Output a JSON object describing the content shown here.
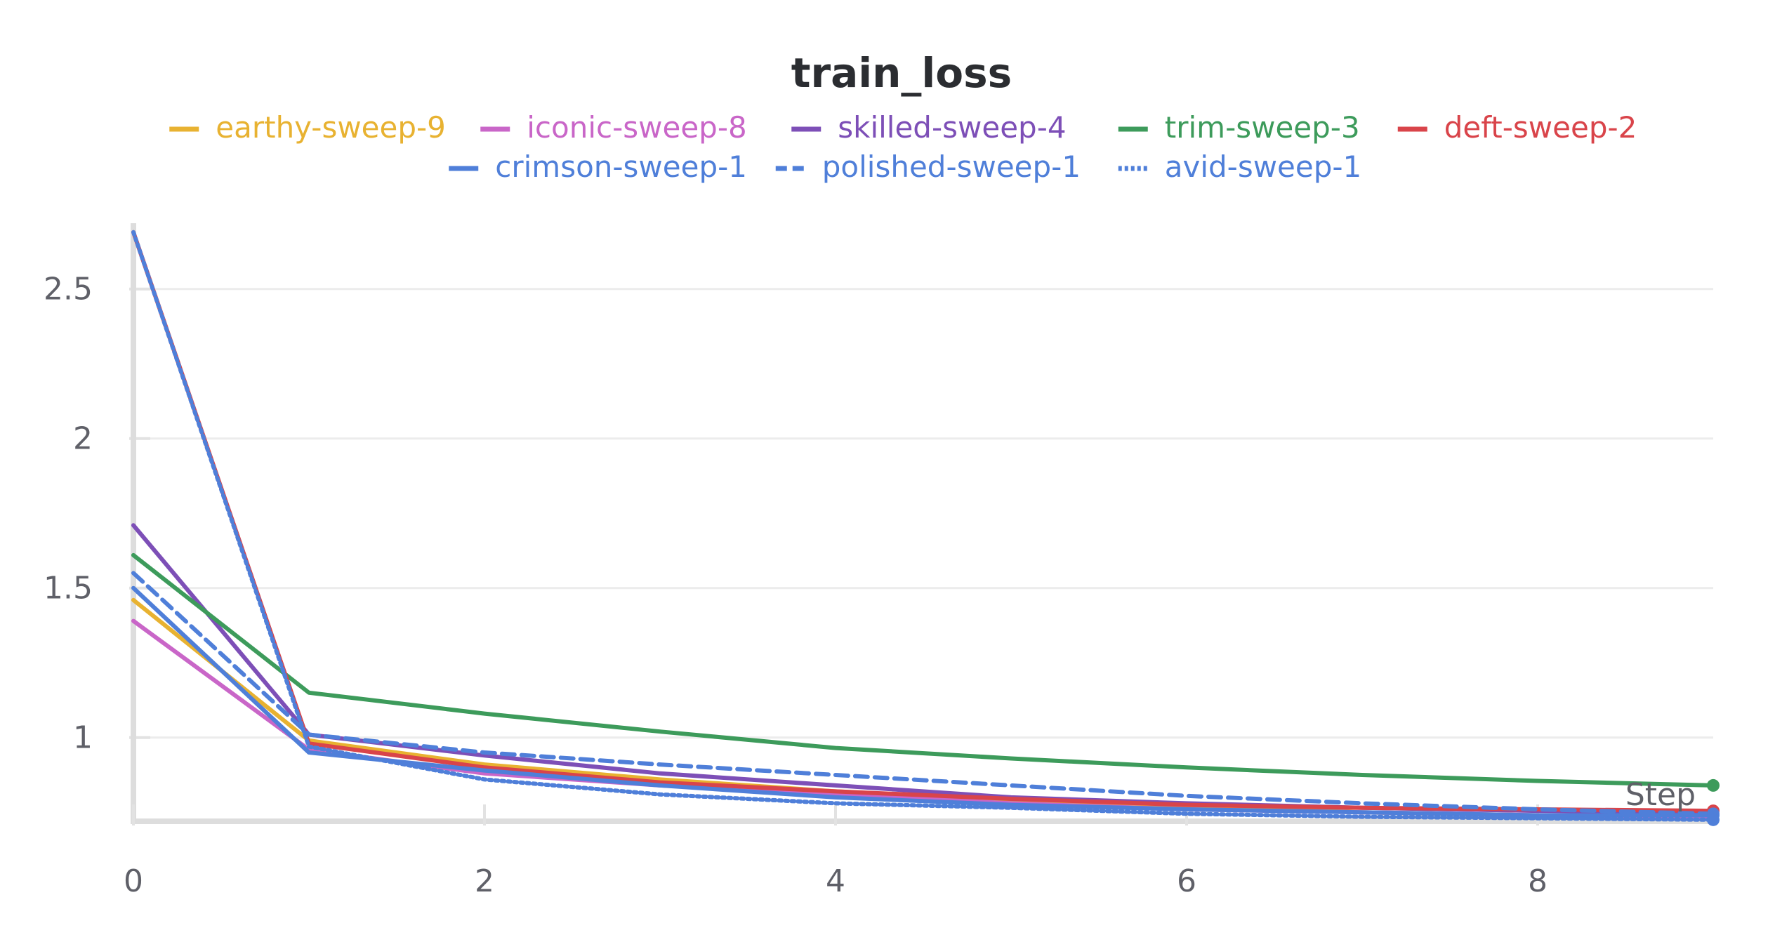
{
  "chart_data": {
    "type": "line",
    "title": "train_loss",
    "xlabel": "Step",
    "ylabel": "",
    "xlim": [
      0,
      9
    ],
    "ylim": [
      0.72,
      2.72
    ],
    "x_ticks": [
      0,
      2,
      4,
      6,
      8
    ],
    "y_ticks": [
      1,
      1.5,
      2,
      2.5
    ],
    "y_tick_labels": [
      "1",
      "1.5",
      "2",
      "2.5"
    ],
    "grid": true,
    "legend_position": "top-center",
    "x": [
      0,
      1,
      2,
      3,
      4,
      5,
      6,
      7,
      8,
      9
    ],
    "series": [
      {
        "name": "earthy-sweep-9",
        "color": "#e8b231",
        "dash": "solid",
        "end_marker": false,
        "values": [
          1.46,
          0.99,
          0.91,
          0.86,
          0.82,
          0.79,
          0.77,
          0.75,
          0.74,
          0.735
        ]
      },
      {
        "name": "iconic-sweep-8",
        "color": "#c966c8",
        "dash": "solid",
        "end_marker": false,
        "values": [
          1.39,
          0.96,
          0.88,
          0.84,
          0.81,
          0.78,
          0.76,
          0.75,
          0.74,
          0.735
        ]
      },
      {
        "name": "skilled-sweep-4",
        "color": "#7d4fb7",
        "dash": "solid",
        "end_marker": false,
        "values": [
          1.71,
          1.01,
          0.94,
          0.88,
          0.84,
          0.8,
          0.78,
          0.765,
          0.755,
          0.75
        ]
      },
      {
        "name": "trim-sweep-3",
        "color": "#3d9b5b",
        "dash": "solid",
        "end_marker": true,
        "values": [
          1.61,
          1.15,
          1.08,
          1.02,
          0.965,
          0.93,
          0.9,
          0.875,
          0.855,
          0.84
        ]
      },
      {
        "name": "deft-sweep-2",
        "color": "#d9444a",
        "dash": "solid",
        "end_marker": true,
        "values": [
          2.69,
          0.98,
          0.9,
          0.85,
          0.82,
          0.795,
          0.775,
          0.765,
          0.76,
          0.755
        ]
      },
      {
        "name": "crimson-sweep-1",
        "color": "#4f7fd9",
        "dash": "solid",
        "end_marker": true,
        "values": [
          1.5,
          0.95,
          0.89,
          0.84,
          0.8,
          0.775,
          0.76,
          0.75,
          0.74,
          0.74
        ]
      },
      {
        "name": "polished-sweep-1",
        "color": "#4f7fd9",
        "dash": "dashed",
        "end_marker": true,
        "values": [
          1.55,
          1.01,
          0.95,
          0.91,
          0.875,
          0.84,
          0.805,
          0.78,
          0.76,
          0.745
        ]
      },
      {
        "name": "avid-sweep-1",
        "color": "#4f7fd9",
        "dash": "dotted",
        "end_marker": true,
        "values": [
          2.69,
          0.97,
          0.86,
          0.81,
          0.78,
          0.765,
          0.745,
          0.735,
          0.73,
          0.725
        ]
      }
    ]
  }
}
